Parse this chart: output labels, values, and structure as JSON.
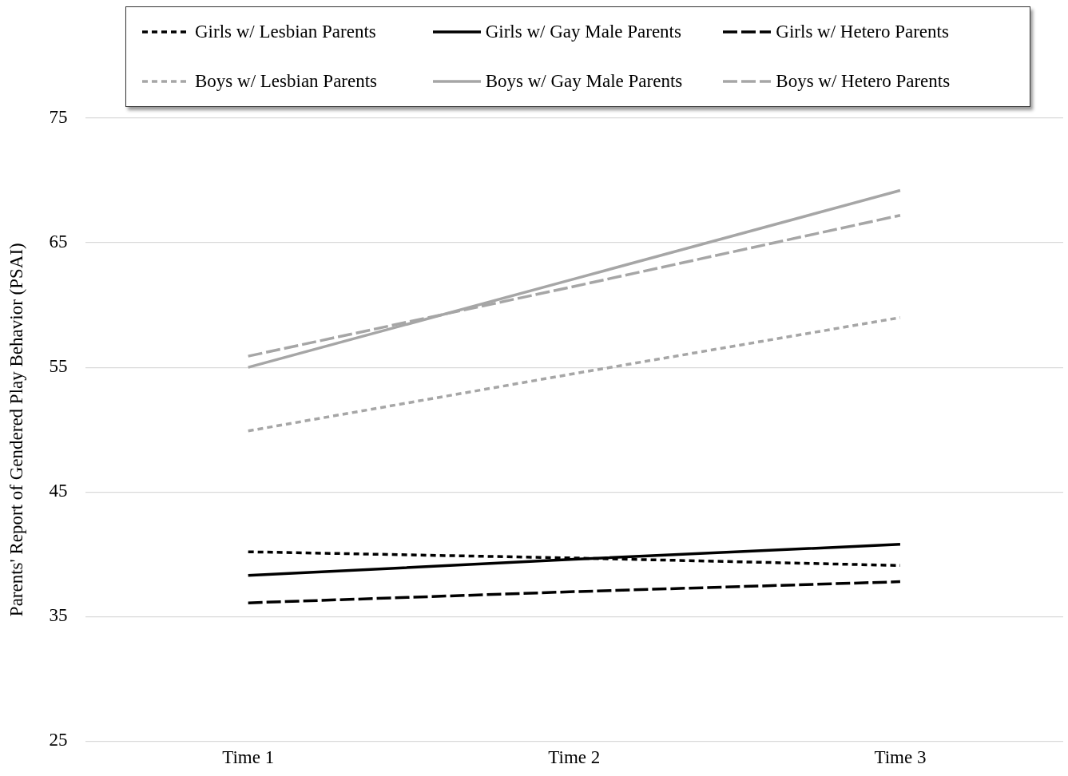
{
  "chart_data": {
    "type": "line",
    "ylabel": "Parents' Report of Gendered Play Behavior (PSAI)",
    "categories": [
      "Time 1",
      "Time 2",
      "Time 3"
    ],
    "series": [
      {
        "name": "Girls w/ Lesbian Parents",
        "color": "#000000",
        "line_style": "dotted",
        "values": [
          40.2,
          39.7,
          39.1
        ]
      },
      {
        "name": "Girls w/ Gay Male Parents",
        "color": "#000000",
        "line_style": "solid",
        "values": [
          38.3,
          39.6,
          40.8
        ]
      },
      {
        "name": "Girls w/ Hetero Parents",
        "color": "#000000",
        "line_style": "dashed",
        "values": [
          36.1,
          37.0,
          37.8
        ]
      },
      {
        "name": "Boys w/ Lesbian Parents",
        "color": "#a6a6a6",
        "line_style": "dotted",
        "values": [
          49.9,
          54.5,
          59.0
        ]
      },
      {
        "name": "Boys w/ Gay Male Parents",
        "color": "#a6a6a6",
        "line_style": "solid",
        "values": [
          55.0,
          62.1,
          69.2
        ]
      },
      {
        "name": "Boys w/ Hetero Parents",
        "color": "#a6a6a6",
        "line_style": "dashed",
        "values": [
          55.9,
          61.5,
          67.2
        ]
      }
    ],
    "ylim": [
      25,
      75
    ],
    "yticks": [
      25,
      35,
      45,
      55,
      65,
      75
    ],
    "grid": "y",
    "legend": "top",
    "marker": "none"
  }
}
